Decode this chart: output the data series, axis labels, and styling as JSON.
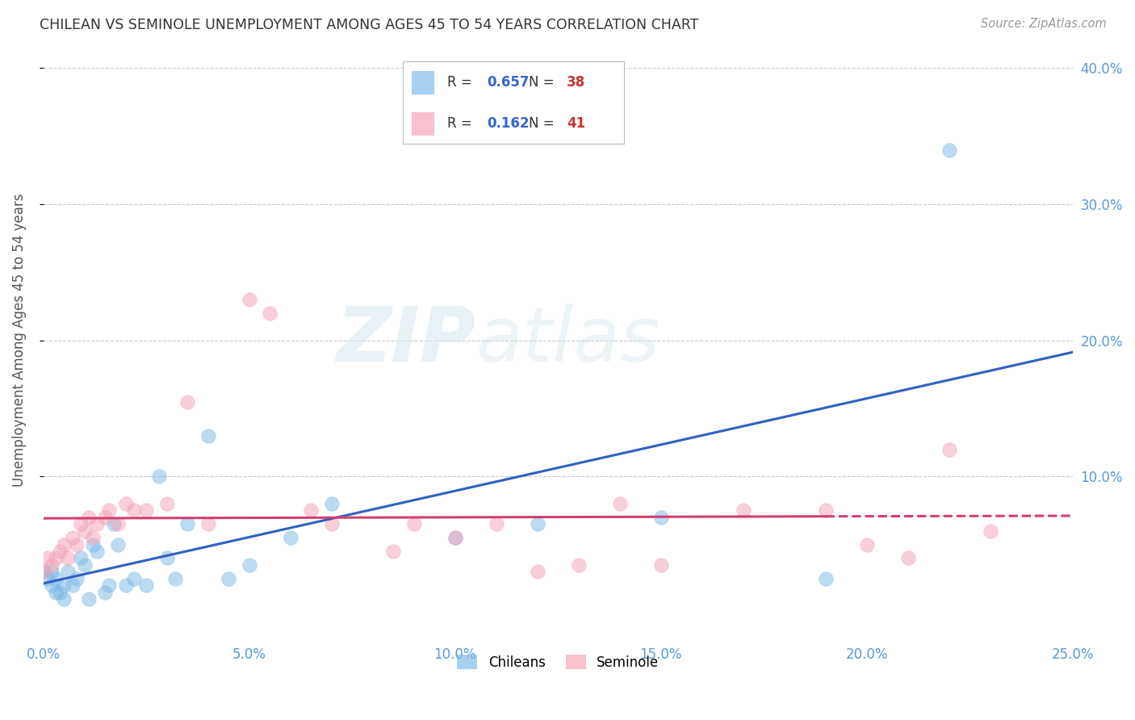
{
  "title": "CHILEAN VS SEMINOLE UNEMPLOYMENT AMONG AGES 45 TO 54 YEARS CORRELATION CHART",
  "source": "Source: ZipAtlas.com",
  "ylabel": "Unemployment Among Ages 45 to 54 years",
  "xlim": [
    0,
    0.25
  ],
  "ylim": [
    -0.02,
    0.42
  ],
  "xtick_labels": [
    "0.0%",
    "5.0%",
    "10.0%",
    "15.0%",
    "20.0%",
    "25.0%"
  ],
  "xtick_vals": [
    0.0,
    0.05,
    0.1,
    0.15,
    0.2,
    0.25
  ],
  "ytick_labels": [
    "10.0%",
    "20.0%",
    "30.0%",
    "40.0%"
  ],
  "ytick_vals": [
    0.1,
    0.2,
    0.3,
    0.4
  ],
  "chilean_color": "#7ab8e8",
  "seminole_color": "#f4a0b5",
  "chilean_line_color": "#3060c0",
  "seminole_line_color": "#d04070",
  "chilean_R": 0.657,
  "chilean_N": 38,
  "seminole_R": 0.162,
  "seminole_N": 41,
  "chileans_x": [
    0.0,
    0.001,
    0.002,
    0.002,
    0.003,
    0.003,
    0.004,
    0.005,
    0.005,
    0.006,
    0.007,
    0.008,
    0.009,
    0.01,
    0.011,
    0.012,
    0.013,
    0.015,
    0.016,
    0.017,
    0.018,
    0.02,
    0.022,
    0.025,
    0.028,
    0.03,
    0.032,
    0.035,
    0.04,
    0.045,
    0.05,
    0.06,
    0.07,
    0.1,
    0.12,
    0.15,
    0.19,
    0.22
  ],
  "chileans_y": [
    0.03,
    0.025,
    0.03,
    0.02,
    0.025,
    0.015,
    0.015,
    0.02,
    0.01,
    0.03,
    0.02,
    0.025,
    0.04,
    0.035,
    0.01,
    0.05,
    0.045,
    0.015,
    0.02,
    0.065,
    0.05,
    0.02,
    0.025,
    0.02,
    0.1,
    0.04,
    0.025,
    0.065,
    0.13,
    0.025,
    0.035,
    0.055,
    0.08,
    0.055,
    0.065,
    0.07,
    0.025,
    0.34
  ],
  "seminoles_x": [
    0.0,
    0.001,
    0.002,
    0.003,
    0.004,
    0.005,
    0.006,
    0.007,
    0.008,
    0.009,
    0.01,
    0.011,
    0.012,
    0.013,
    0.015,
    0.016,
    0.018,
    0.02,
    0.022,
    0.025,
    0.03,
    0.035,
    0.04,
    0.05,
    0.055,
    0.065,
    0.07,
    0.085,
    0.09,
    0.1,
    0.11,
    0.12,
    0.13,
    0.14,
    0.15,
    0.17,
    0.19,
    0.2,
    0.21,
    0.22,
    0.23
  ],
  "seminoles_y": [
    0.03,
    0.04,
    0.035,
    0.04,
    0.045,
    0.05,
    0.04,
    0.055,
    0.05,
    0.065,
    0.06,
    0.07,
    0.055,
    0.065,
    0.07,
    0.075,
    0.065,
    0.08,
    0.075,
    0.075,
    0.08,
    0.155,
    0.065,
    0.23,
    0.22,
    0.075,
    0.065,
    0.045,
    0.065,
    0.055,
    0.065,
    0.03,
    0.035,
    0.08,
    0.035,
    0.075,
    0.075,
    0.05,
    0.04,
    0.12,
    0.06
  ],
  "watermark_zip": "ZIP",
  "watermark_atlas": "atlas",
  "background_color": "#ffffff",
  "grid_color": "#bbbbbb"
}
